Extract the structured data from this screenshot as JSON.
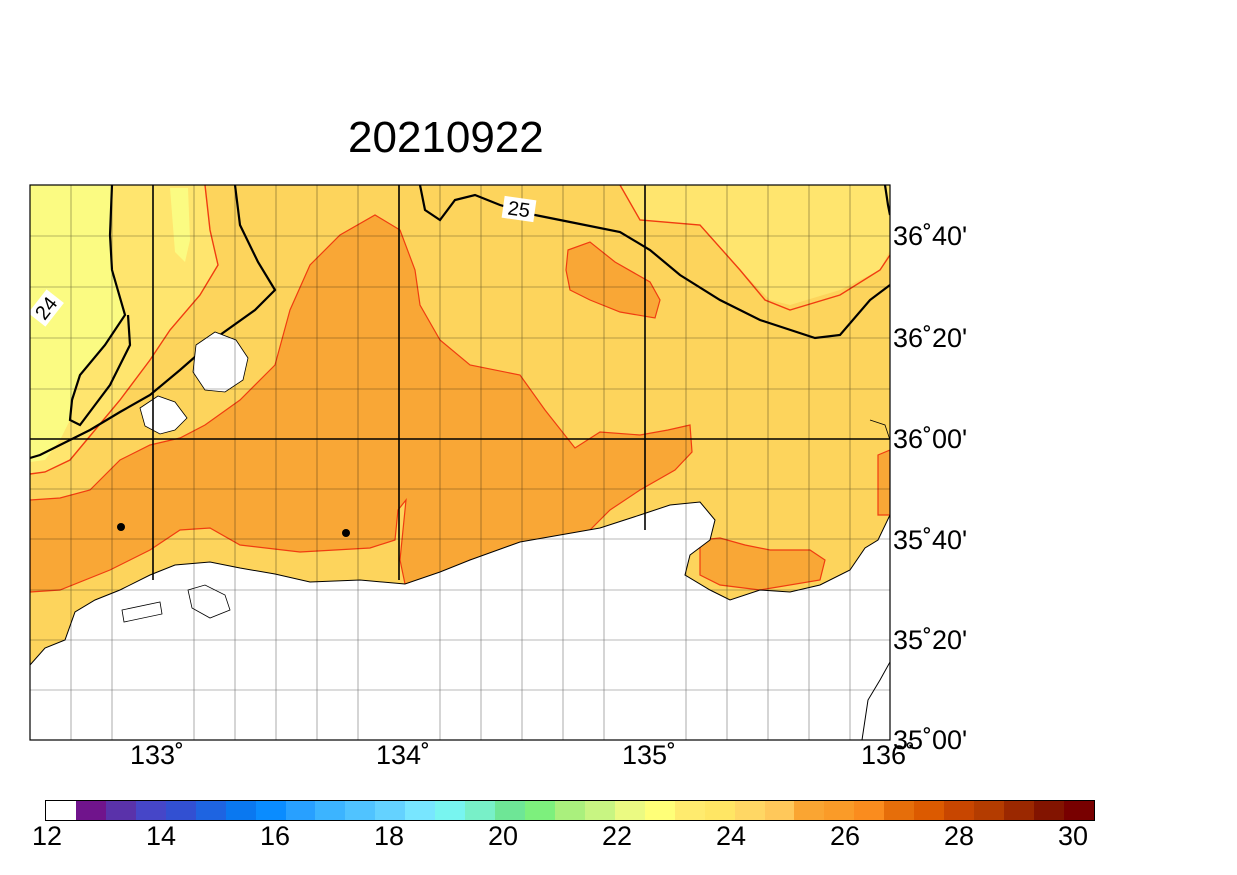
{
  "title": "20210922",
  "lat_labels": [
    "36˚40'",
    "36˚20'",
    "36˚00'",
    "35˚40'",
    "35˚20'",
    "35˚00'"
  ],
  "lon_labels": [
    "133˚",
    "134˚",
    "135˚",
    "136˚"
  ],
  "contour_labels": [
    "24",
    "25"
  ],
  "colorbar": {
    "min": 12,
    "max": 30,
    "ticks": [
      "12",
      "14",
      "16",
      "18",
      "20",
      "22",
      "24",
      "26",
      "28",
      "30"
    ],
    "colors": [
      "#ffffff",
      "#70148c",
      "#5a32aa",
      "#4646c8",
      "#3250d2",
      "#1e64e1",
      "#0a78f0",
      "#0a8cff",
      "#28a0ff",
      "#3cb4ff",
      "#50c3ff",
      "#64d2ff",
      "#78e6ff",
      "#78f5f0",
      "#78f0c8",
      "#6ee696",
      "#7df07d",
      "#aaf07d",
      "#c8f582",
      "#ebfa82",
      "#ffff78",
      "#ffeb6e",
      "#ffe664",
      "#ffd764",
      "#ffc85a",
      "#faa532",
      "#fa9b28",
      "#fa8c1e",
      "#e66e0a",
      "#dc5a00",
      "#c84600",
      "#b43c00",
      "#9b2800",
      "#821400",
      "#780000"
    ]
  },
  "regions": {
    "cool_zone": "#fbfb82",
    "mild_zone": "#ffe56e",
    "warm_zone": "#fdd45c",
    "hot_zone": "#f9a736",
    "land": "#ffffff"
  }
}
